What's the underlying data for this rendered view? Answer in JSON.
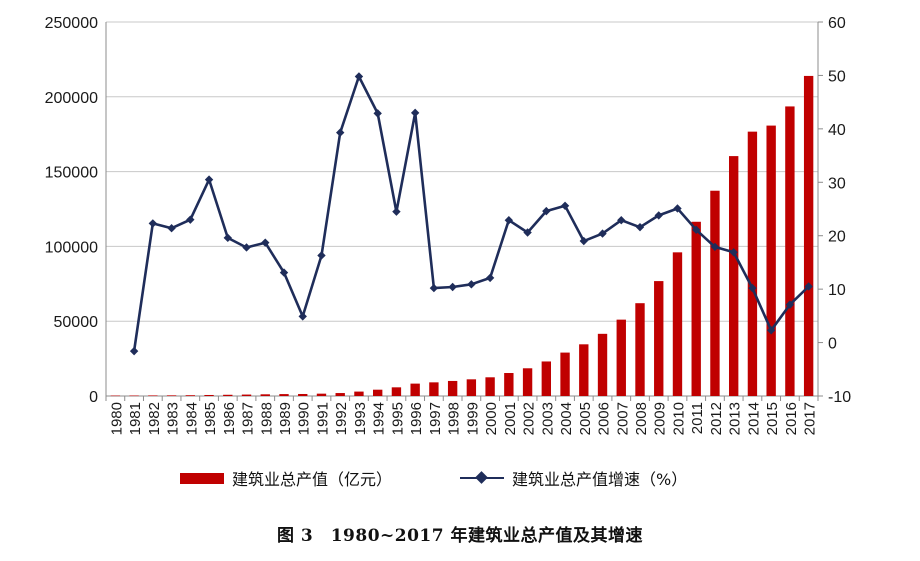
{
  "chart_data": {
    "type": "bar+line",
    "categories": [
      "1980",
      "1981",
      "1982",
      "1983",
      "1984",
      "1985",
      "1986",
      "1987",
      "1988",
      "1989",
      "1990",
      "1991",
      "1992",
      "1993",
      "1994",
      "1995",
      "1996",
      "1997",
      "1998",
      "1999",
      "2000",
      "2001",
      "2002",
      "2003",
      "2004",
      "2005",
      "2006",
      "2007",
      "2008",
      "2009",
      "2010",
      "2011",
      "2012",
      "2013",
      "2014",
      "2015",
      "2016",
      "2017"
    ],
    "series": [
      {
        "name": "建筑业总产值（亿元）",
        "type": "bar",
        "axis": "left",
        "color": "#c00000",
        "values": [
          286,
          310,
          380,
          430,
          520,
          680,
          815,
          960,
          1130,
          1280,
          1345,
          1565,
          1975,
          2950,
          4215,
          5795,
          8280,
          9125,
          10060,
          11150,
          12500,
          15365,
          18525,
          23085,
          29020,
          34550,
          41560,
          51045,
          62035,
          76810,
          96030,
          116465,
          137215,
          160365,
          176710,
          180755,
          193565,
          213955
        ]
      },
      {
        "name": "建筑业总产值增速（%）",
        "type": "line",
        "axis": "right",
        "color": "#1f2d5a",
        "values": [
          null,
          -1.6,
          22.3,
          21.4,
          23.0,
          30.5,
          19.6,
          17.8,
          18.7,
          13.1,
          4.9,
          16.3,
          39.3,
          49.8,
          42.9,
          24.5,
          43.0,
          10.2,
          10.4,
          10.9,
          12.1,
          22.9,
          20.6,
          24.6,
          25.6,
          19.0,
          20.4,
          22.9,
          21.6,
          23.8,
          25.1,
          21.1,
          17.9,
          16.9,
          10.2,
          2.3,
          7.1,
          10.5
        ]
      }
    ],
    "y_left": {
      "min": 0,
      "max": 250000,
      "ticks": [
        "0",
        "50000",
        "100000",
        "150000",
        "200000",
        "250000"
      ]
    },
    "y_right": {
      "min": -10,
      "max": 60,
      "ticks": [
        "-10",
        "0",
        "10",
        "20",
        "30",
        "40",
        "50",
        "60"
      ]
    },
    "grid": true,
    "legend_position": "bottom",
    "caption": "图 3　1980~2017 年建筑业总产值及其增速"
  }
}
